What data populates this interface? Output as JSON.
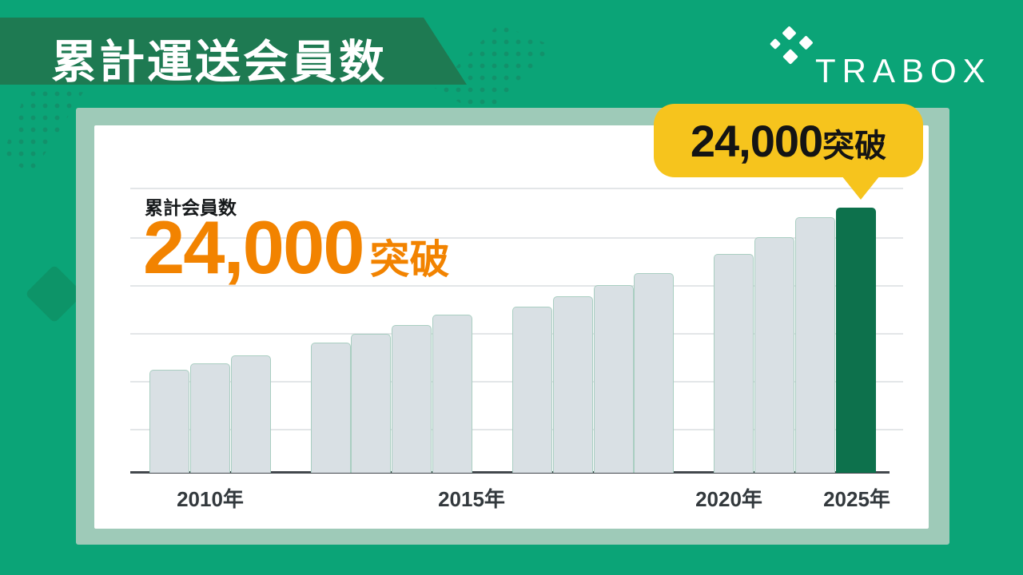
{
  "page": {
    "background_color": "#0ba477"
  },
  "header": {
    "title": "累計運送会員数",
    "band_color": "#1e7a52",
    "text_color": "#ffffff"
  },
  "logo": {
    "name": "TRABOX",
    "icon": "four-diamonds-icon",
    "color": "#ffffff"
  },
  "callout": {
    "number": "24,000",
    "suffix": "突破",
    "background_color": "#f6c41d",
    "text_color": "#141414"
  },
  "panel": {
    "label": "累計会員数",
    "highlight_number": "24,000",
    "highlight_suffix": "突破",
    "highlight_color": "#f28300",
    "card_color": "#ffffff",
    "frame_color": "#9ecab8"
  },
  "chart_data": {
    "type": "bar",
    "title": "累計会員数 24,000突破",
    "x_tick_labels": [
      "2010年",
      "2015年",
      "2020年",
      "2025年"
    ],
    "tick_bar_indices": [
      1,
      6,
      11,
      14
    ],
    "groups": [
      3,
      4,
      4,
      4
    ],
    "values_estimated": [
      9300,
      9900,
      10600,
      11800,
      12600,
      13400,
      14300,
      15000,
      16000,
      17000,
      18100,
      19800,
      21300,
      23100,
      24000
    ],
    "labeled_final_value": 24000,
    "highlight_index": 14,
    "bar_color": "#d9e0e4",
    "bar_border_color": "#a9cec1",
    "highlight_bar_color": "#0d714c",
    "gridline_count": 6,
    "grid": "horizontal",
    "legend": "none",
    "ylabel": "",
    "xlabel": "",
    "ylim": [
      0,
      25800
    ]
  }
}
